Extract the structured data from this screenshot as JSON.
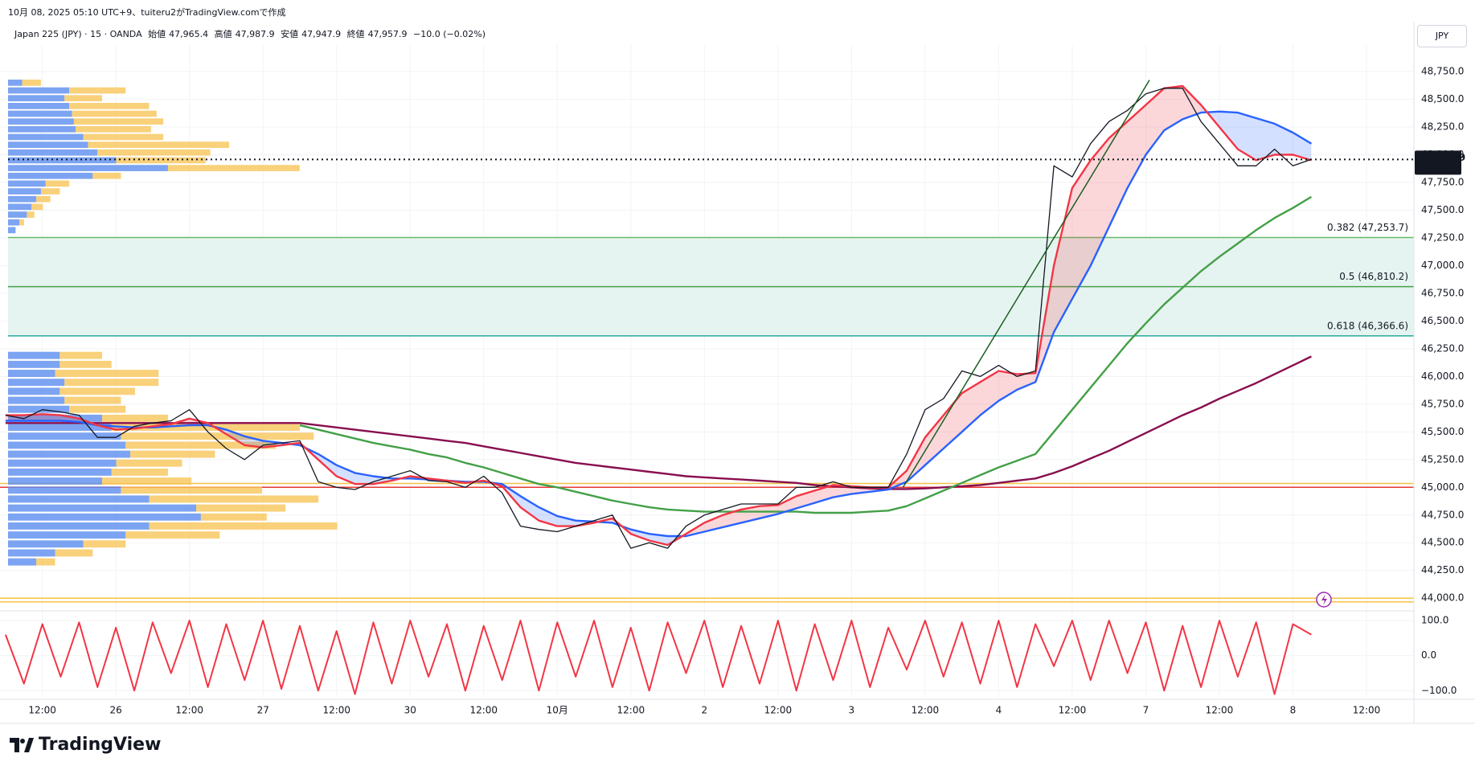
{
  "header": {
    "caption": "10月 08, 2025 05:10 UTC+9、tuiteru2がTradingView.comで作成",
    "symbol": "Japan 225 (JPY) · 15 · OANDA",
    "ohlc": [
      {
        "label": "始値",
        "value": "47,965.4"
      },
      {
        "label": "高値",
        "value": "47,987.9"
      },
      {
        "label": "安値",
        "value": "47,947.9"
      },
      {
        "label": "終値",
        "value": "47,957.9"
      }
    ],
    "change": "−10.0 (−0.02%)",
    "currency": "JPY",
    "logo": "TradingView"
  },
  "chart_data": [
    {
      "type": "line",
      "categories": [
        null,
        null,
        "12:00",
        null,
        null,
        null,
        "26",
        null,
        null,
        null,
        "12:00",
        null,
        null,
        null,
        "27",
        null,
        null,
        null,
        "12:00",
        null,
        null,
        null,
        "30",
        null,
        null,
        null,
        "12:00",
        null,
        null,
        null,
        "10月",
        null,
        null,
        null,
        "12:00",
        null,
        null,
        null,
        "2",
        null,
        null,
        null,
        "12:00",
        null,
        null,
        null,
        "3",
        null,
        null,
        null,
        "12:00",
        null,
        null,
        null,
        "4",
        null,
        null,
        null,
        "12:00",
        null,
        null,
        null,
        "7",
        null,
        null,
        null,
        "12:00",
        null,
        null,
        null,
        "8",
        null,
        null,
        null,
        "12:00",
        null,
        null
      ],
      "series": [
        {
          "color": "#131722",
          "values": [
            45650,
            45620,
            45700,
            45680,
            45650,
            45450,
            45450,
            45550,
            45580,
            45600,
            45700,
            45500,
            45350,
            45250,
            45380,
            45400,
            45420,
            45050,
            45000,
            44980,
            45050,
            45100,
            45150,
            45060,
            45050,
            45000,
            45100,
            44950,
            44650,
            44620,
            44600,
            44650,
            44700,
            44750,
            44450,
            44500,
            44450,
            44650,
            44750,
            44800,
            44850,
            44850,
            44850,
            45000,
            45000,
            45050,
            45000,
            45000,
            45000,
            45300,
            45700,
            45800,
            46050,
            46000,
            46100,
            46000,
            46050,
            47900,
            47800,
            48100,
            48300,
            48400,
            48550,
            48600,
            48600,
            48300,
            48100,
            47900,
            47900,
            48050,
            47900,
            47957.9,
            null,
            null,
            null,
            null,
            null
          ]
        },
        {
          "color": "#f23645",
          "values": [
            45650,
            45650,
            45660,
            45650,
            45620,
            45560,
            45520,
            45530,
            45550,
            45570,
            45620,
            45580,
            45480,
            45380,
            45360,
            45380,
            45400,
            45250,
            45100,
            45030,
            45030,
            45060,
            45100,
            45080,
            45060,
            45040,
            45060,
            45010,
            44820,
            44700,
            44650,
            44650,
            44680,
            44720,
            44580,
            44520,
            44480,
            44580,
            44680,
            44750,
            44800,
            44830,
            44840,
            44920,
            44970,
            45020,
            45010,
            45000,
            45000,
            45150,
            45450,
            45650,
            45850,
            45950,
            46050,
            46020,
            46030,
            47000,
            47700,
            47950,
            48150,
            48300,
            48450,
            48600,
            48620,
            48450,
            48250,
            48050,
            47950,
            48000,
            48000,
            47950,
            null,
            null,
            null,
            null,
            null
          ]
        },
        {
          "color": "#2962ff",
          "values": [
            45600,
            45600,
            45600,
            45600,
            45590,
            45560,
            45550,
            45540,
            45540,
            45550,
            45560,
            45560,
            45520,
            45460,
            45420,
            45400,
            45380,
            45300,
            45200,
            45130,
            45100,
            45080,
            45080,
            45070,
            45060,
            45050,
            45050,
            45030,
            44920,
            44820,
            44740,
            44700,
            44690,
            44680,
            44620,
            44580,
            44560,
            44560,
            44600,
            44640,
            44680,
            44720,
            44760,
            44810,
            44860,
            44910,
            44940,
            44960,
            44980,
            45050,
            45200,
            45350,
            45500,
            45650,
            45780,
            45880,
            45950,
            46400,
            46700,
            47000,
            47350,
            47700,
            48000,
            48220,
            48320,
            48380,
            48390,
            48380,
            48330,
            48280,
            48200,
            48100,
            null,
            null,
            null,
            null,
            null
          ]
        },
        {
          "color": "#43a047",
          "values": [
            null,
            null,
            null,
            null,
            null,
            null,
            null,
            null,
            null,
            null,
            null,
            null,
            null,
            null,
            null,
            null,
            45560,
            45520,
            45480,
            45440,
            45400,
            45370,
            45340,
            45300,
            45270,
            45220,
            45180,
            45130,
            45080,
            45030,
            45000,
            44960,
            44920,
            44880,
            44850,
            44820,
            44800,
            44790,
            44780,
            44780,
            44780,
            44780,
            44780,
            44780,
            44770,
            44770,
            44770,
            44780,
            44790,
            44830,
            44900,
            44970,
            45040,
            45110,
            45180,
            45240,
            45300,
            45500,
            45700,
            45900,
            46100,
            46300,
            46480,
            46650,
            46800,
            46950,
            47080,
            47200,
            47320,
            47430,
            47520,
            47620,
            null,
            null,
            null,
            null,
            null
          ]
        },
        {
          "color": "#880e4f",
          "values": [
            45580,
            45580,
            45580,
            45580,
            45580,
            45580,
            45580,
            45580,
            45580,
            45580,
            45580,
            45580,
            45580,
            45580,
            45580,
            45580,
            45580,
            45560,
            45540,
            45520,
            45500,
            45480,
            45460,
            45440,
            45420,
            45400,
            45370,
            45340,
            45310,
            45280,
            45250,
            45220,
            45200,
            45180,
            45160,
            45140,
            45120,
            45100,
            45090,
            45080,
            45070,
            45060,
            45050,
            45040,
            45020,
            45010,
            45000,
            44990,
            44985,
            44985,
            44990,
            45000,
            45010,
            45020,
            45040,
            45060,
            45080,
            45130,
            45190,
            45260,
            45330,
            45410,
            45490,
            45570,
            45650,
            45720,
            45800,
            45870,
            45940,
            46020,
            46100,
            46180,
            null,
            null,
            null,
            null,
            null
          ]
        }
      ],
      "fill_between": {
        "series": [
          1,
          2
        ],
        "colors": [
          "#f2364533",
          "#2962ff33"
        ]
      },
      "ylim": [
        43900,
        48990
      ],
      "yticks": [
        {
          "value": 44000,
          "label": "44,000.0"
        },
        {
          "value": 44250,
          "label": "44,250.0"
        },
        {
          "value": 44500,
          "label": "44,500.0"
        },
        {
          "value": 44750,
          "label": "44,750.0"
        },
        {
          "value": 45000,
          "label": "45,000.0"
        },
        {
          "value": 45250,
          "label": "45,250.0"
        },
        {
          "value": 45500,
          "label": "45,500.0"
        },
        {
          "value": 45750,
          "label": "45,750.0"
        },
        {
          "value": 46000,
          "label": "46,000.0"
        },
        {
          "value": 46250,
          "label": "46,250.0"
        },
        {
          "value": 46500,
          "label": "46,500.0"
        },
        {
          "value": 46750,
          "label": "46,750.0"
        },
        {
          "value": 47000,
          "label": "47,000.0"
        },
        {
          "value": 47250,
          "label": "47,250.0"
        },
        {
          "value": 47500,
          "label": "47,500.0"
        },
        {
          "value": 47750,
          "label": "47,750.0"
        },
        {
          "value": 48000,
          "label": "48,000.0"
        },
        {
          "value": 48250,
          "label": "48,250.0"
        },
        {
          "value": 48500,
          "label": "48,500.0"
        },
        {
          "value": 48750,
          "label": "48,750.0"
        }
      ],
      "grid": true,
      "fib_levels": [
        {
          "value": 47253.7,
          "label": "0.382 (47,253.7)",
          "color": "#66bb6a"
        },
        {
          "value": 46810.2,
          "label": "0.5 (46,810.2)",
          "color": "#43a047"
        },
        {
          "value": 46366.6,
          "label": "0.618 (46,366.6)",
          "color": "#26a69a"
        }
      ],
      "fib_fill": "#e6f4f1",
      "hlines": [
        {
          "value": 45000,
          "color": "#e53935"
        },
        {
          "value": 45035,
          "color": "#f5c242"
        },
        {
          "value": 44000,
          "color": "#f5c242"
        },
        {
          "value": 43966,
          "color": "#f5c242"
        }
      ],
      "trendline": {
        "x": [
          48.8,
          62.2
        ],
        "y": [
          45000,
          48674
        ],
        "color": "#1b5e20"
      },
      "last": {
        "value": 47957.9,
        "label": "47,957.9",
        "countdown": "04:51",
        "color": "#131722"
      },
      "volume_profiles": [
        {
          "levels": [
            48650,
            48580,
            48510,
            48440,
            48370,
            48300,
            48230,
            48160,
            48090,
            48020,
            47950,
            47880,
            47810,
            47740,
            47670,
            47600,
            47530,
            47460,
            47390,
            47320
          ],
          "up": [
            15,
            65,
            60,
            65,
            68,
            70,
            72,
            80,
            85,
            95,
            115,
            170,
            90,
            40,
            35,
            30,
            25,
            20,
            12,
            8
          ],
          "down": [
            20,
            60,
            40,
            85,
            90,
            95,
            80,
            85,
            150,
            120,
            95,
            140,
            30,
            25,
            20,
            15,
            12,
            8,
            5,
            0
          ]
        },
        {
          "levels": [
            46190,
            46109,
            46028,
            45947,
            45866,
            45785,
            45704,
            45623,
            45542,
            45461,
            45380,
            45299,
            45218,
            45137,
            45056,
            44975,
            44894,
            44813,
            44732,
            44651,
            44570,
            44489,
            44408,
            44327
          ],
          "up": [
            55,
            55,
            50,
            60,
            55,
            60,
            65,
            100,
            110,
            120,
            125,
            130,
            115,
            110,
            100,
            120,
            150,
            200,
            205,
            150,
            125,
            80,
            50,
            30
          ],
          "down": [
            45,
            55,
            110,
            100,
            80,
            60,
            60,
            70,
            200,
            205,
            160,
            90,
            70,
            60,
            95,
            150,
            180,
            95,
            70,
            200,
            100,
            45,
            40,
            20
          ]
        }
      ],
      "profile_colors": [
        "#5b8defcc",
        "#f7c65acc"
      ]
    },
    {
      "type": "line",
      "series": [
        {
          "color": "#f23645",
          "values": [
            60,
            -80,
            90,
            -60,
            95,
            -90,
            80,
            -100,
            95,
            -50,
            100,
            -90,
            90,
            -70,
            100,
            -95,
            85,
            -100,
            70,
            -110,
            95,
            -80,
            100,
            -60,
            90,
            -100,
            85,
            -70,
            100,
            -100,
            95,
            -60,
            100,
            -90,
            80,
            -100,
            95,
            -50,
            100,
            -90,
            85,
            -80,
            100,
            -100,
            90,
            -70,
            100,
            -90,
            80,
            -40,
            100,
            -60,
            95,
            -80,
            100,
            -90,
            90,
            -30,
            100,
            -70,
            100,
            -50,
            95,
            -100,
            85,
            -90,
            100,
            -60,
            95,
            -110,
            90,
            60,
            null,
            null,
            null,
            null,
            null
          ]
        }
      ],
      "ylim": [
        -120,
        121
      ],
      "yticks": [
        {
          "value": 100,
          "label": "100.0"
        },
        {
          "value": 0,
          "label": "0.0"
        },
        {
          "value": -100,
          "label": "−100.0"
        }
      ]
    }
  ]
}
